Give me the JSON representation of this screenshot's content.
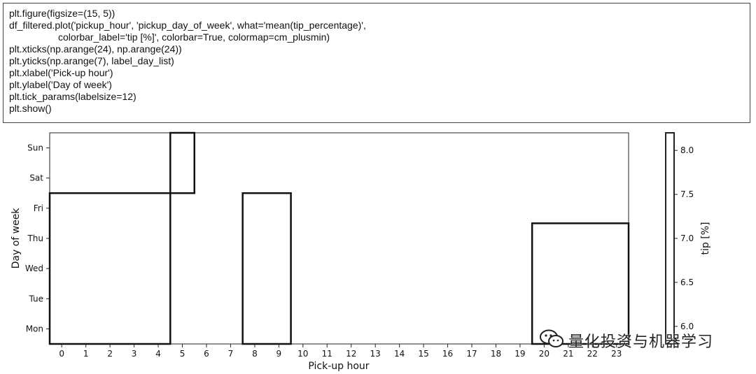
{
  "code": {
    "lines": [
      "plt.figure(figsize=(15, 5))",
      "df_filtered.plot('pickup_hour', 'pickup_day_of_week', what='mean(tip_percentage)',",
      "                  colorbar_label='tip [%]', colorbar=True, colormap=cm_plusmin)",
      "plt.xticks(np.arange(24), np.arange(24))",
      "plt.yticks(np.arange(7), label_day_list)",
      "plt.xlabel('Pick-up hour')",
      "plt.ylabel('Day of week')",
      "plt.tick_params(labelsize=12)",
      "plt.show()"
    ]
  },
  "chart_data": {
    "type": "heatmap",
    "xlabel": "Pick-up hour",
    "ylabel": "Day of week",
    "x_categories": [
      "0",
      "1",
      "2",
      "3",
      "4",
      "5",
      "6",
      "7",
      "8",
      "9",
      "10",
      "11",
      "12",
      "13",
      "14",
      "15",
      "16",
      "17",
      "18",
      "19",
      "20",
      "21",
      "22",
      "23"
    ],
    "y_categories": [
      "Mon",
      "Tue",
      "Wed",
      "Thu",
      "Fri",
      "Sat",
      "Sun"
    ],
    "colorbar": {
      "label": "tip [%]",
      "ticks": [
        "6.0",
        "6.5",
        "7.0",
        "7.5",
        "8.0"
      ],
      "tick_values": [
        6.0,
        6.5,
        7.0,
        7.5,
        8.0
      ],
      "range": [
        5.8,
        8.2
      ]
    },
    "outlined_regions": [
      {
        "x_from": 0,
        "x_to": 4,
        "y_from": 0,
        "y_to": 4
      },
      {
        "x_from": 5,
        "x_to": 5,
        "y_from": 5,
        "y_to": 6
      },
      {
        "x_from": 8,
        "x_to": 9,
        "y_from": 0,
        "y_to": 4
      },
      {
        "x_from": 20,
        "x_to": 23,
        "y_from": 0,
        "y_to": 3
      }
    ]
  },
  "watermark": {
    "icon": "wechat-icon",
    "text": "量化投资与机器学习"
  }
}
